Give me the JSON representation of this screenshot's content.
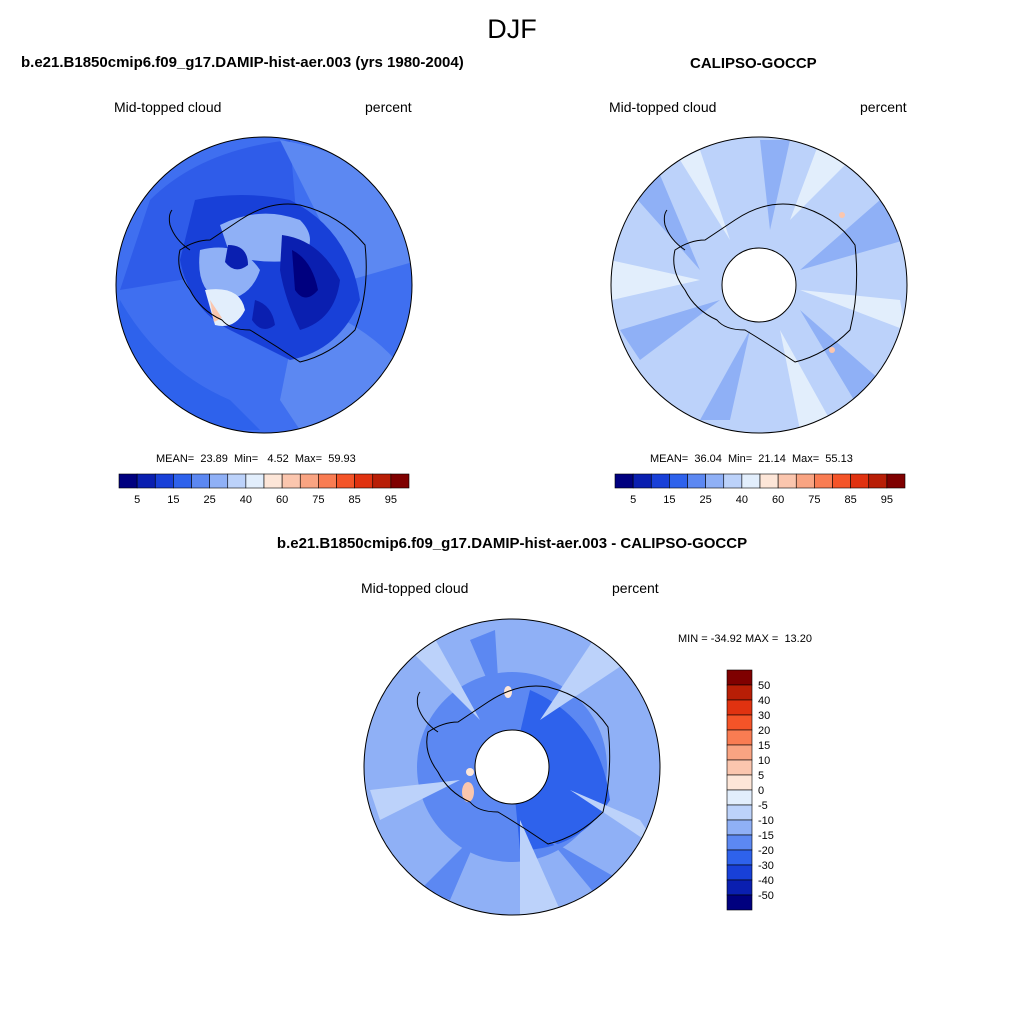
{
  "page": {
    "title": "DJF"
  },
  "panels": {
    "model": {
      "title": "b.e21.B1850cmip6.f09_g17.DAMIP-hist-aer.003 (yrs 1980-2004)",
      "variable": "Mid-topped cloud",
      "units": "percent",
      "stats": {
        "mean_label": "MEAN=",
        "mean": "23.89",
        "min_label": "Min=",
        "min": "4.52",
        "max_label": "Max=",
        "max": "59.93"
      }
    },
    "obs": {
      "title": "CALIPSO-GOCCP",
      "variable": "Mid-topped cloud",
      "units": "percent",
      "stats": {
        "mean_label": "MEAN=",
        "mean": "36.04",
        "min_label": "Min=",
        "min": "21.14",
        "max_label": "Max=",
        "max": "55.13"
      }
    },
    "diff": {
      "title": "b.e21.B1850cmip6.f09_g17.DAMIP-hist-aer.003 - CALIPSO-GOCCP",
      "variable": "Mid-topped cloud",
      "units": "percent",
      "stats": {
        "min_label": "MIN =",
        "min": "-34.92",
        "max_label": "MAX =",
        "max": "13.20"
      }
    }
  },
  "colorbars": {
    "abs": {
      "tick_labels": [
        "5",
        "15",
        "25",
        "40",
        "60",
        "75",
        "85",
        "95"
      ],
      "colors": [
        "#00007f",
        "#0a1fb0",
        "#1840d8",
        "#2e62ec",
        "#5c88f2",
        "#8fb0f6",
        "#bcd2fa",
        "#e2eefc",
        "#fde6d8",
        "#fbc6ae",
        "#f9a482",
        "#f97c52",
        "#f45428",
        "#e03210",
        "#b81e06",
        "#7f0000"
      ]
    },
    "diff": {
      "tick_labels": [
        "50",
        "40",
        "30",
        "20",
        "15",
        "10",
        "5",
        "0",
        "-5",
        "-10",
        "-15",
        "-20",
        "-30",
        "-40",
        "-50"
      ],
      "colors": [
        "#7f0000",
        "#b81e06",
        "#e03210",
        "#f45428",
        "#f97c52",
        "#f9a482",
        "#fbc6ae",
        "#fde6d8",
        "#e2eefc",
        "#bcd2fa",
        "#8fb0f6",
        "#5c88f2",
        "#2e62ec",
        "#1840d8",
        "#0a1fb0",
        "#00007f"
      ]
    }
  },
  "chart_data": [
    {
      "type": "heatmap",
      "projection": "south polar stereographic",
      "season": "DJF",
      "title": "b.e21.B1850cmip6.f09_g17.DAMIP-hist-aer.003 (yrs 1980-2004)",
      "field": "Mid-topped cloud",
      "units": "percent",
      "mean": 23.89,
      "min": 4.52,
      "max": 59.93,
      "contour_levels": [
        5,
        10,
        15,
        20,
        25,
        30,
        40,
        50,
        60,
        65,
        75,
        80,
        85,
        90,
        95
      ]
    },
    {
      "type": "heatmap",
      "projection": "south polar stereographic",
      "season": "DJF",
      "title": "CALIPSO-GOCCP",
      "field": "Mid-topped cloud",
      "units": "percent",
      "mean": 36.04,
      "min": 21.14,
      "max": 55.13,
      "contour_levels": [
        5,
        10,
        15,
        20,
        25,
        30,
        40,
        50,
        60,
        65,
        75,
        80,
        85,
        90,
        95
      ]
    },
    {
      "type": "heatmap",
      "projection": "south polar stereographic",
      "season": "DJF",
      "title": "b.e21.B1850cmip6.f09_g17.DAMIP-hist-aer.003 - CALIPSO-GOCCP",
      "field": "Mid-topped cloud",
      "units": "percent",
      "min": -34.92,
      "max": 13.2,
      "contour_levels": [
        -50,
        -40,
        -30,
        -20,
        -15,
        -10,
        -5,
        0,
        5,
        10,
        15,
        20,
        30,
        40,
        50
      ]
    }
  ]
}
